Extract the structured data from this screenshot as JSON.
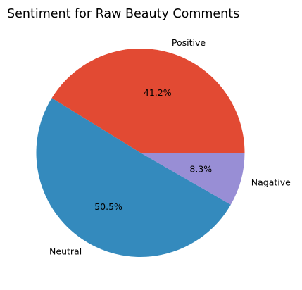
{
  "chart_data": {
    "type": "pie",
    "title": "Sentiment for Raw Beauty Comments",
    "slices": [
      {
        "label": "Positive",
        "value": 41.2,
        "pct_label": "41.2%",
        "color": "#e24a33"
      },
      {
        "label": "Neutral",
        "value": 50.5,
        "pct_label": "50.5%",
        "color": "#348abd"
      },
      {
        "label": "Nagative",
        "value": 8.3,
        "pct_label": "8.3%",
        "color": "#988ed5"
      }
    ],
    "start_angle_deg": 0,
    "direction": "counterclockwise",
    "legend": "none"
  }
}
